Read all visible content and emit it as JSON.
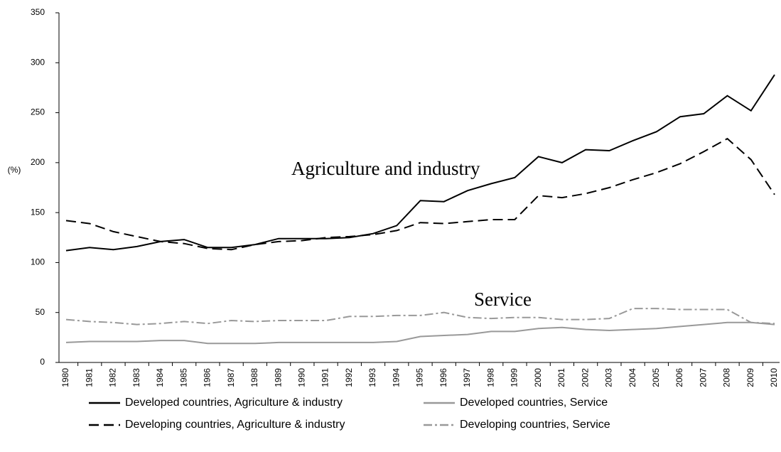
{
  "chart_data": {
    "type": "line",
    "y_label": "(%)",
    "annotations": [
      "Agriculture and industry",
      "Service"
    ],
    "categories": [
      "1980",
      "1981",
      "1982",
      "1983",
      "1984",
      "1985",
      "1986",
      "1987",
      "1988",
      "1989",
      "1990",
      "1991",
      "1992",
      "1993",
      "1994",
      "1995",
      "1996",
      "1997",
      "1998",
      "1999",
      "2000",
      "2001",
      "2002",
      "2003",
      "2004",
      "2005",
      "2006",
      "2007",
      "2008",
      "2009",
      "2010"
    ],
    "ylim": [
      0,
      350
    ],
    "yticks": [
      0,
      50,
      100,
      150,
      200,
      250,
      300,
      350
    ],
    "grid": false,
    "series": [
      {
        "name": "Developed countries, Agriculture & industry",
        "color": "#000000",
        "dash": "solid",
        "values": [
          112,
          115,
          113,
          116,
          121,
          123,
          115,
          115,
          118,
          124,
          124,
          124,
          125,
          129,
          137,
          162,
          161,
          172,
          179,
          185,
          206,
          200,
          213,
          212,
          222,
          231,
          246,
          249,
          267,
          252,
          288
        ]
      },
      {
        "name": "Developed countries, Service",
        "color": "#999999",
        "dash": "solid",
        "values": [
          20,
          21,
          21,
          21,
          22,
          22,
          19,
          19,
          19,
          20,
          20,
          20,
          20,
          20,
          21,
          26,
          27,
          28,
          31,
          31,
          34,
          35,
          33,
          32,
          33,
          34,
          36,
          38,
          40,
          40,
          38
        ]
      },
      {
        "name": "Developing countries, Agriculture & industry",
        "color": "#000000",
        "dash": "dashed",
        "values": [
          142,
          139,
          131,
          126,
          121,
          119,
          114,
          113,
          118,
          121,
          122,
          125,
          126,
          128,
          132,
          140,
          139,
          141,
          143,
          143,
          167,
          165,
          169,
          175,
          183,
          190,
          199,
          211,
          224,
          203,
          168
        ]
      },
      {
        "name": "Developing countries, Service",
        "color": "#999999",
        "dash": "dashdot",
        "values": [
          43,
          41,
          40,
          38,
          39,
          41,
          39,
          42,
          41,
          42,
          42,
          42,
          46,
          46,
          47,
          47,
          50,
          45,
          44,
          45,
          45,
          43,
          43,
          44,
          54,
          54,
          53,
          53,
          53,
          40,
          39
        ]
      }
    ]
  }
}
